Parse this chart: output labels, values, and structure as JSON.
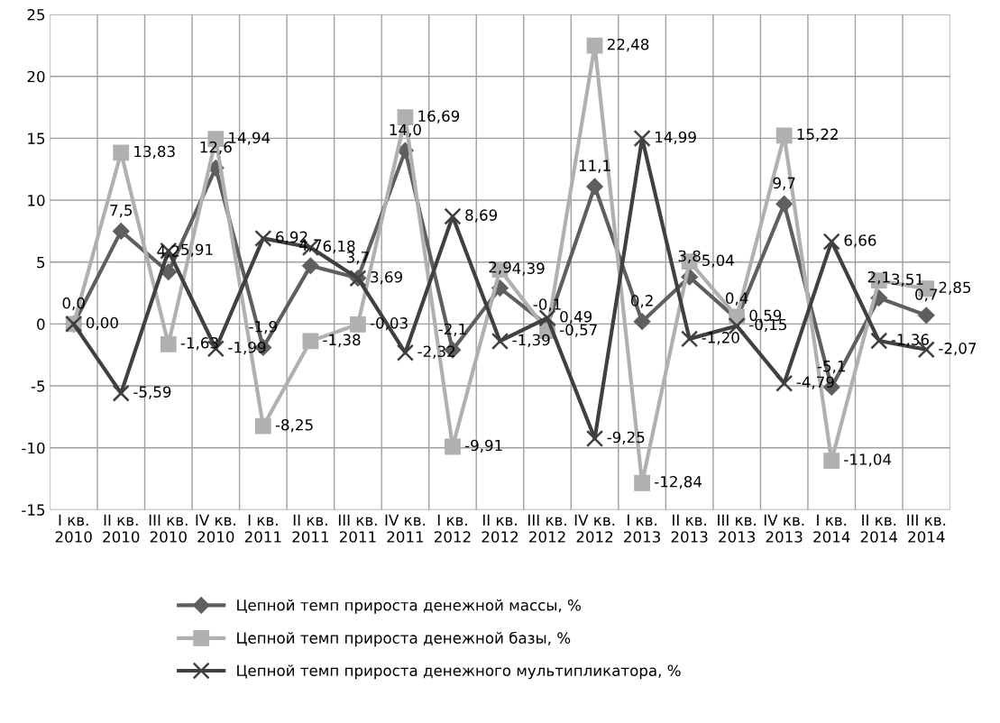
{
  "chart_data": {
    "type": "line",
    "categories": [
      "I кв.\n2010",
      "II кв.\n2010",
      "III кв.\n2010",
      "IV кв.\n2010",
      "I кв.\n2011",
      "II кв.\n2011",
      "III кв.\n2011",
      "IV кв.\n2011",
      "I кв.\n2012",
      "II кв.\n2012",
      "III кв.\n2012",
      "IV кв.\n2012",
      "I кв.\n2013",
      "II кв.\n2013",
      "III кв.\n2013",
      "IV кв.\n2013",
      "I кв.\n2014",
      "II кв.\n2014",
      "III кв.\n2014"
    ],
    "series": [
      {
        "name": "Цепной темп прироста денежной массы, %",
        "color": "#5f5f5f",
        "marker": "diamond",
        "values": [
          0.0,
          7.5,
          4.2,
          12.6,
          -1.9,
          4.7,
          3.7,
          14.0,
          -2.1,
          2.9,
          -0.1,
          11.1,
          0.2,
          3.8,
          0.4,
          9.7,
          -5.1,
          2.1,
          0.7
        ],
        "value_labels": [
          "0,0",
          "7,5",
          "4,2",
          "12,6",
          "-1,9",
          "4,7",
          "3,7",
          "14,0",
          "-2,1",
          "2,9",
          "-0,1",
          "11,1",
          "0,2",
          "3,8",
          "0,4",
          "9,7",
          "-5,1",
          "2,1",
          "0,7"
        ]
      },
      {
        "name": "Цепной темп прироста денежной базы, %",
        "color": "#b0b0b0",
        "marker": "square",
        "values": [
          0.0,
          13.83,
          -1.63,
          14.94,
          -8.25,
          -1.38,
          -0.03,
          16.69,
          -9.91,
          4.39,
          -0.57,
          22.48,
          -12.84,
          5.04,
          0.59,
          15.22,
          -11.04,
          3.51,
          2.85
        ],
        "value_labels": [
          "0,00",
          "13,83",
          "-1,63",
          "14,94",
          "-8,25",
          "-1,38",
          "-0,03",
          "16,69",
          "-9,91",
          "4,39",
          "-0,57",
          "22,48",
          "-12,84",
          "5,04",
          "0,59",
          "15,22",
          "-11,04",
          "3,51",
          "2,85"
        ]
      },
      {
        "name": "Цепной темп прироста денежного мультипликатора, %",
        "color": "#404040",
        "marker": "cross",
        "values": [
          0.0,
          -5.59,
          5.91,
          -1.99,
          6.92,
          6.18,
          3.69,
          -2.32,
          8.69,
          -1.39,
          0.49,
          -9.25,
          14.99,
          -1.2,
          -0.15,
          -4.79,
          6.66,
          -1.36,
          -2.07
        ],
        "value_labels": [
          null,
          "-5,59",
          "5,91",
          "-1,99",
          "6,92",
          "6,18",
          "3,69",
          "-2,32",
          "8,69",
          "-1,39",
          "0,49",
          "-9,25",
          "14,99",
          "-1,20",
          "-0,15",
          "-4,79",
          "6,66",
          "-1,36",
          "-2,07"
        ]
      }
    ],
    "ylim": [
      -15,
      25
    ],
    "yticks": [
      -15,
      -10,
      -5,
      0,
      5,
      10,
      15,
      20,
      25
    ],
    "grid": true,
    "legend": "bottom"
  }
}
